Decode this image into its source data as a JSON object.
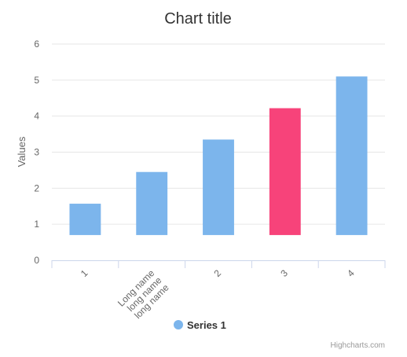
{
  "chart_data": {
    "type": "bar",
    "title": "Chart title",
    "xlabel": "",
    "ylabel": "Values",
    "ylim": [
      0,
      6
    ],
    "yticks": [
      0,
      1,
      2,
      3,
      4,
      5,
      6
    ],
    "categories": [
      "1",
      "Long name long name long name",
      "2",
      "3",
      "4"
    ],
    "category_label_lines": [
      [
        "1"
      ],
      [
        "Long name",
        "long name",
        "long name"
      ],
      [
        "2"
      ],
      [
        "3"
      ],
      [
        "4"
      ]
    ],
    "series": [
      {
        "name": "Series 1",
        "low": [
          0.7,
          0.7,
          0.7,
          0.7,
          0.7
        ],
        "values": [
          1.57,
          2.45,
          3.35,
          4.22,
          5.1
        ],
        "color": "#7cb5ec",
        "point_colors": [
          "#7cb5ec",
          "#7cb5ec",
          "#7cb5ec",
          "#f7437a",
          "#7cb5ec"
        ]
      }
    ],
    "grid": true,
    "legend_position": "bottom-center",
    "credits": "Highcharts.com"
  },
  "colors": {
    "grid": "#e6e6e6",
    "axis": "#ccd6eb",
    "text": "#666666",
    "title": "#333333"
  }
}
